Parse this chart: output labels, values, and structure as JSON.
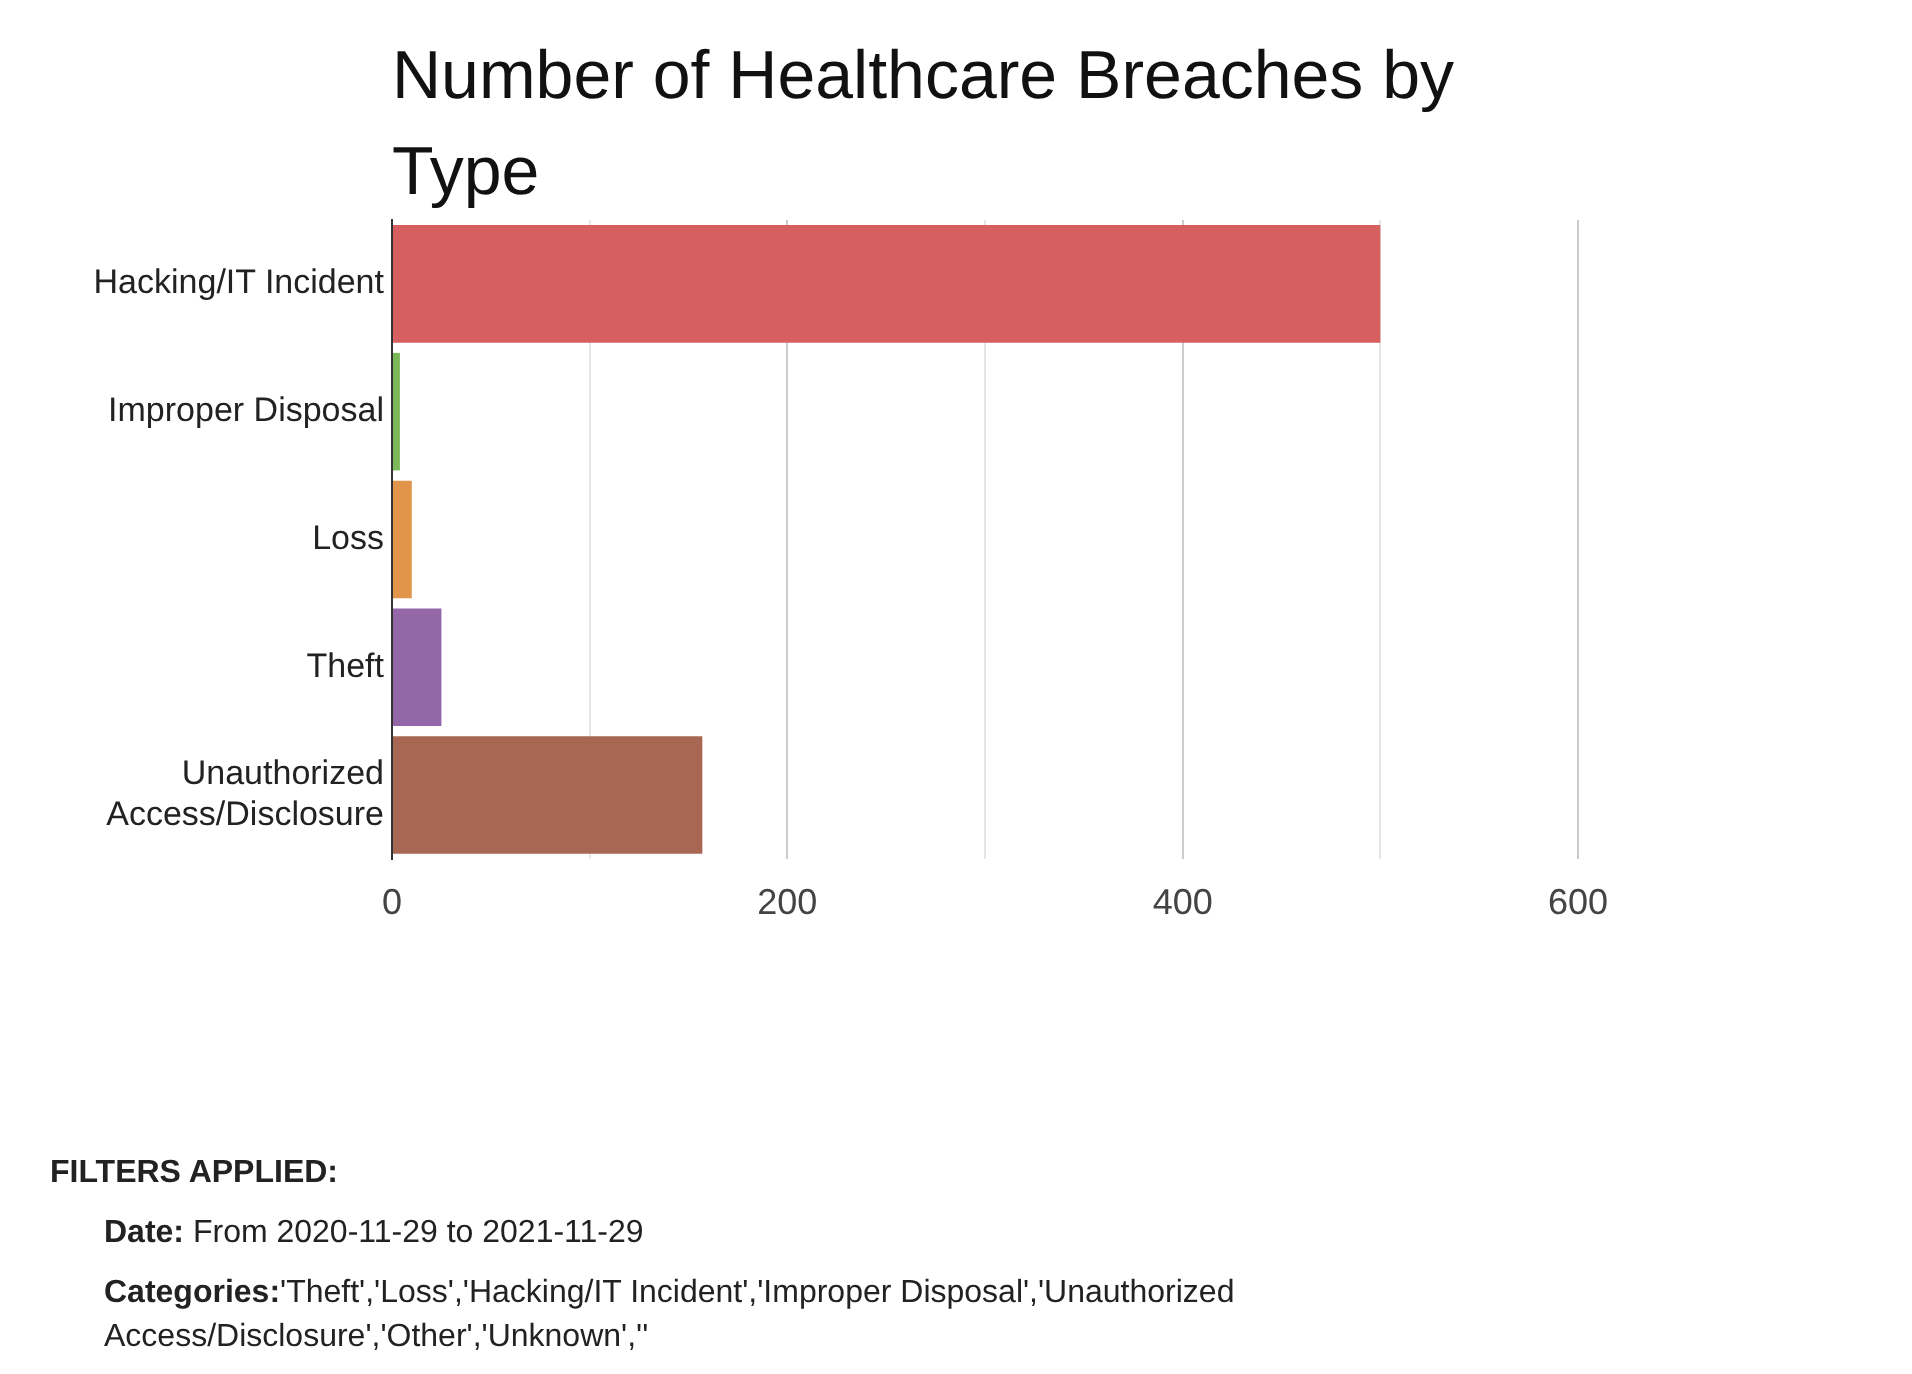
{
  "chart_data": {
    "type": "bar",
    "orientation": "horizontal",
    "title": "Number of Healthcare Breaches by Type",
    "categories": [
      "Hacking/IT Incident",
      "Improper Disposal",
      "Loss",
      "Theft",
      "Unauthorized Access/Disclosure"
    ],
    "values": [
      500,
      4,
      10,
      25,
      157
    ],
    "colors": [
      "#d65f5f",
      "#7ab85a",
      "#e0954a",
      "#9467a8",
      "#a86753"
    ],
    "xlim": [
      0,
      600
    ],
    "xticks": [
      0,
      {
        "value": 100,
        "label": null
      },
      200,
      {
        "value": 300,
        "label": null
      },
      400,
      {
        "value": 500,
        "label": null
      },
      600
    ],
    "grid": "x",
    "legend": false,
    "annotations": [
      "FILTERS APPLIED:",
      "Date: From 2020-11-29 to 2021-11-29",
      "Categories:'Theft','Loss','Hacking/IT Incident','Improper Disposal','Unauthorized Access/Disclosure','Other','Unknown',''"
    ]
  }
}
